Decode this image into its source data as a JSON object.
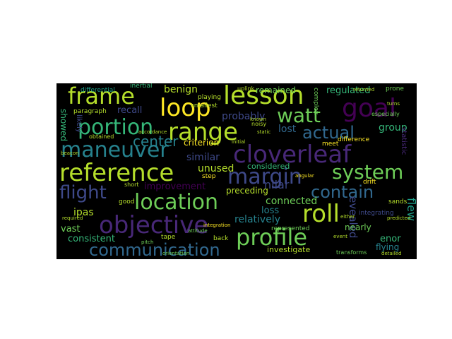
{
  "palette": {
    "yellow": "#fde725",
    "lime": "#b5de2b",
    "green": "#6ece58",
    "teal_green": "#35b779",
    "teal": "#1f9e89",
    "cyan": "#26828e",
    "blue": "#31688e",
    "indigo": "#3e4989",
    "purple": "#482878",
    "dark_purple": "#440154"
  },
  "words": {
    "w1": "frame",
    "w2": "loop",
    "w3": "lesson",
    "w4": "goal",
    "w5": "portion",
    "w6": "range",
    "w7": "watt",
    "w8": "maneuver",
    "w9": "center",
    "w10": "cloverleaf",
    "w11": "actual",
    "w12": "reference",
    "w13": "margin",
    "w14": "system",
    "w15": "flight",
    "w16": "location",
    "w17": "contain",
    "w18": "roll",
    "w19": "objective",
    "w20": "profile",
    "w21": "communication",
    "w22": "benign",
    "w23": "remained",
    "w24": "regulated",
    "w25": "recall",
    "w26": "probably",
    "w27": "group",
    "w28": "showed",
    "w29": "lost",
    "w30": "similar",
    "w31": "criterion",
    "w32": "unused",
    "w33": "considered",
    "w34": "improvement",
    "w35": "preceding",
    "w36": "connected",
    "w37": "nilar",
    "w38": "loss",
    "w39": "relatively",
    "w40": "evealed",
    "w41": "flew",
    "w42": "ipas",
    "w43": "vast",
    "w44": "consistent",
    "w45": "investigate",
    "w46": "nearly",
    "w47": "enor",
    "w48": "flying",
    "w49": "differential",
    "w50": "inertial",
    "w51": "paragraph",
    "w52": "playing",
    "w53": "smallest",
    "w54": "uplink",
    "w55": "difference",
    "w56": "meet",
    "w57": "complex",
    "w58": "prone",
    "w59": "especially",
    "w60": "integrating",
    "w61": "drift",
    "w62": "sands",
    "w63": "statistic",
    "w64": "step",
    "w65": "short",
    "w66": "good",
    "w67": "tape",
    "w68": "back",
    "w69": "represented",
    "w70": "transforms",
    "w71": "attitude",
    "w72": "integration",
    "w73": "detailed",
    "w74": "required",
    "w75": "orientation",
    "w76": "pitch",
    "w77": "likely",
    "w78": "obtained",
    "w79": "beacon",
    "w80": "noisy",
    "w81": "event",
    "w82": "angular",
    "w83": "either",
    "w84": "predicted",
    "w85": "accordance",
    "w86": "initial",
    "w87": "turns",
    "w88": "static",
    "w89": "known",
    "w90": "returned"
  }
}
